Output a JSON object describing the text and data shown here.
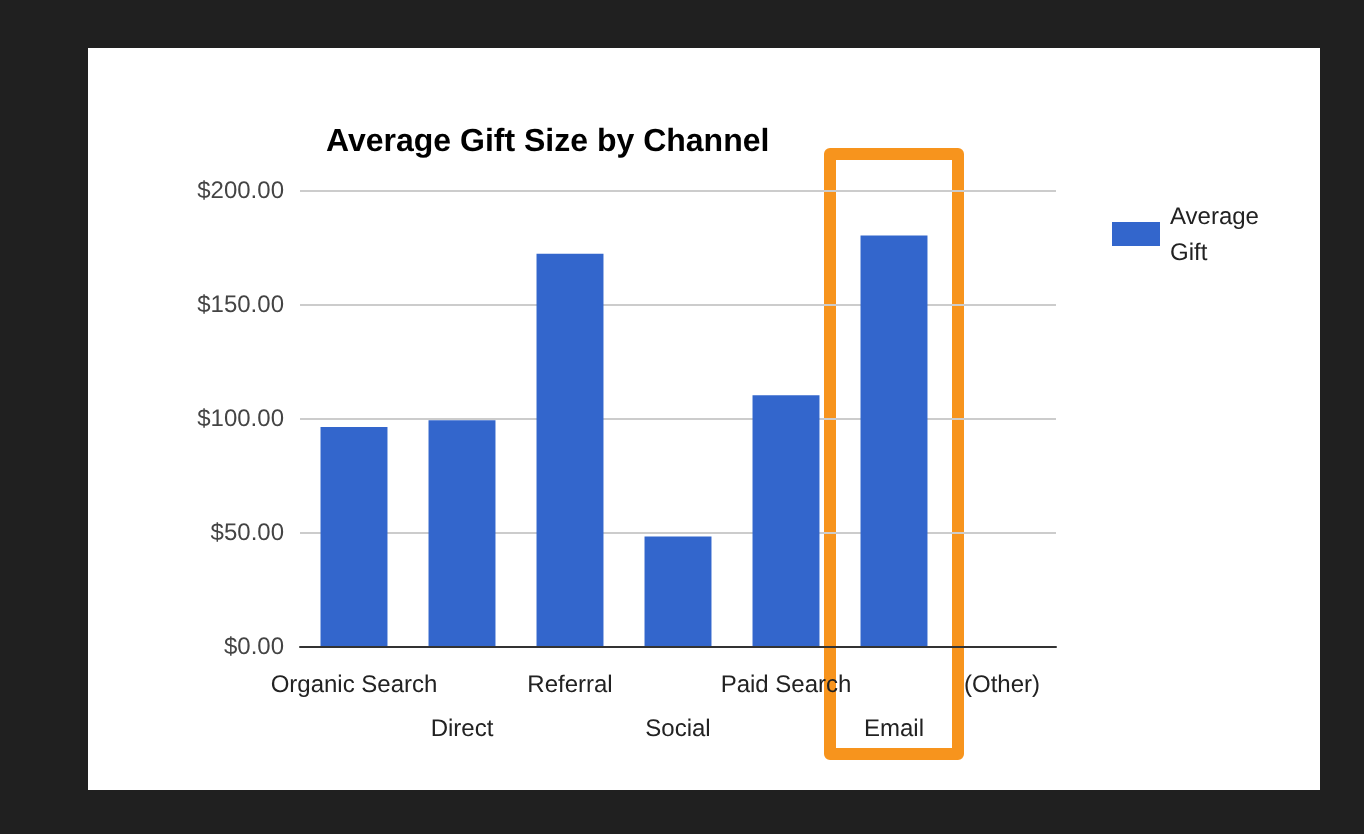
{
  "chart_data": {
    "type": "bar",
    "title": "Average Gift Size by Channel",
    "categories": [
      "Organic Search",
      "Direct",
      "Referral",
      "Social",
      "Paid Search",
      "Email",
      "(Other)"
    ],
    "series": [
      {
        "name": "Average Gift",
        "color": "#3366cc",
        "values": [
          96,
          99,
          172,
          48,
          110,
          180,
          null
        ]
      }
    ],
    "ylim": [
      0,
      200
    ],
    "yticks": [
      {
        "value": 0,
        "label": "$0.00"
      },
      {
        "value": 50,
        "label": "$50.00"
      },
      {
        "value": 100,
        "label": "$100.00"
      },
      {
        "value": 150,
        "label": "$150.00"
      },
      {
        "value": 200,
        "label": "$200.00"
      }
    ],
    "grid": "y",
    "legend": "right"
  }
}
